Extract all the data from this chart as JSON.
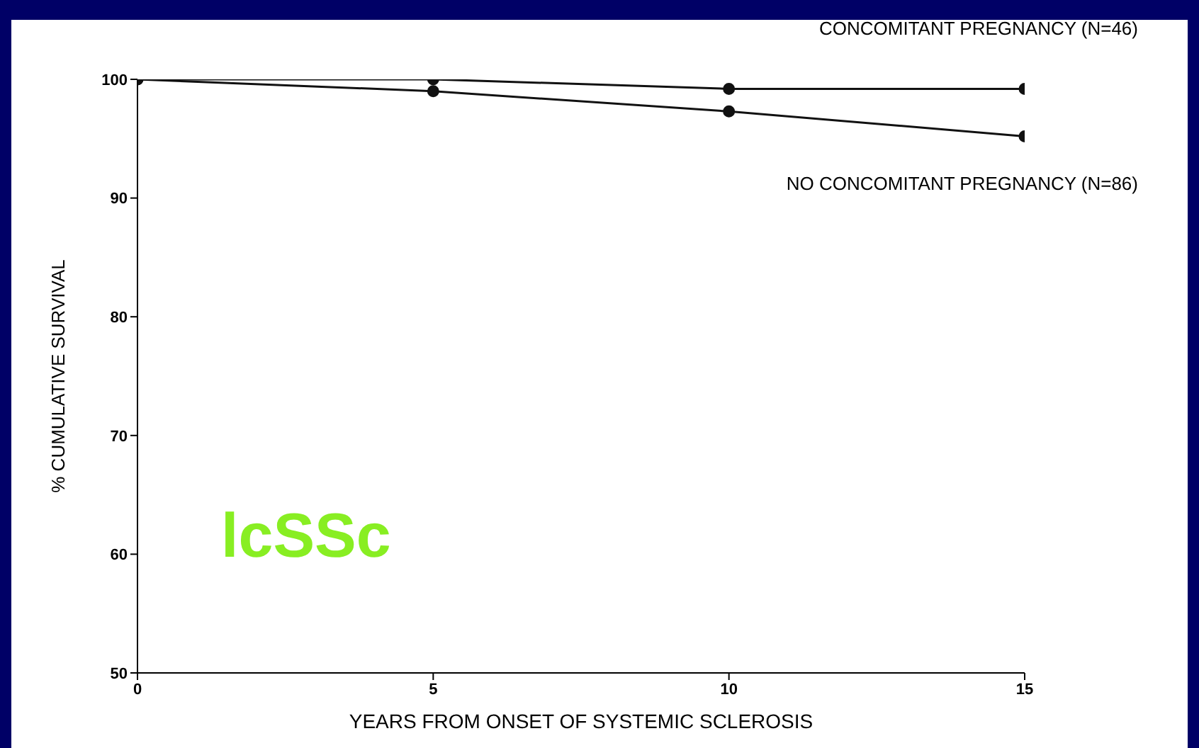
{
  "chart_data": {
    "type": "line",
    "xlabel": "YEARS FROM ONSET OF SYSTEMIC SCLEROSIS",
    "ylabel": "% CUMULATIVE SURVIVAL",
    "x": [
      0,
      5,
      10,
      15
    ],
    "series": [
      {
        "name": "CONCOMITANT PREGNANCY (N=46)",
        "color": "#111111",
        "values": [
          100,
          100,
          99.2,
          99.2
        ]
      },
      {
        "name": "NO CONCOMITANT PREGNANCY (N=86)",
        "color": "#111111",
        "values": [
          100,
          99,
          97.3,
          95.2
        ]
      }
    ],
    "xlim": [
      0,
      15
    ],
    "xticks": [
      0,
      5,
      10,
      15
    ],
    "ylim": [
      50,
      100
    ],
    "yticks": [
      50,
      60,
      70,
      80,
      90,
      100
    ],
    "grid": false,
    "legend": false,
    "marker": "circle",
    "line_style": "solid",
    "annotations": [
      "lcSSc"
    ]
  }
}
